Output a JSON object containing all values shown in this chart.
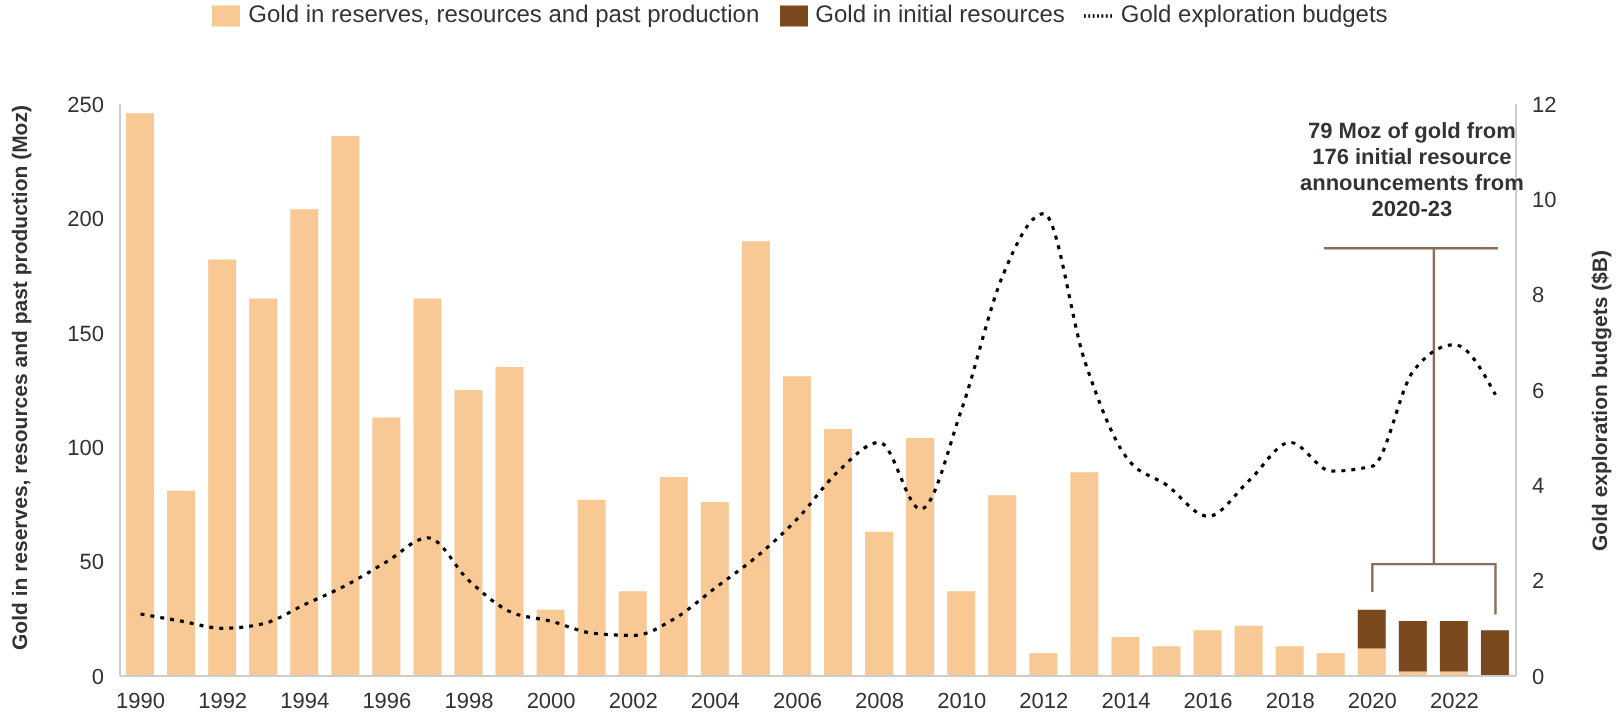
{
  "chart_data": {
    "type": "bar",
    "stacked": true,
    "categories": [
      "1990",
      null,
      "1992",
      null,
      "1994",
      null,
      "1996",
      null,
      "1998",
      null,
      "2000",
      null,
      "2002",
      null,
      "2004",
      null,
      "2006",
      null,
      "2008",
      null,
      "2010",
      null,
      "2012",
      null,
      "2014",
      null,
      "2016",
      null,
      "2018",
      null,
      "2020",
      null,
      "2022",
      null
    ],
    "series": [
      {
        "name": "Gold in reserves, resources and past production",
        "color": "#f8c994",
        "values": [
          246,
          81,
          182,
          165,
          204,
          236,
          113,
          165,
          125,
          135,
          29,
          77,
          37,
          87,
          76,
          190,
          131,
          108,
          63,
          104,
          37,
          79,
          10,
          89,
          17,
          13,
          20,
          22,
          13,
          10,
          12,
          2,
          2,
          0
        ]
      },
      {
        "name": "Gold in initial resources",
        "color": "#7a4a1e",
        "values": [
          null,
          null,
          null,
          null,
          null,
          null,
          null,
          null,
          null,
          null,
          null,
          null,
          null,
          null,
          null,
          null,
          null,
          null,
          null,
          null,
          null,
          null,
          null,
          null,
          null,
          null,
          null,
          null,
          null,
          null,
          17,
          22,
          22,
          20
        ]
      },
      {
        "name": "Gold exploration budgets",
        "type": "line",
        "axis": "y2",
        "color": "#000000",
        "line_style": "dotted",
        "values": [
          1.3,
          1.15,
          1.0,
          1.1,
          1.5,
          1.9,
          2.4,
          2.9,
          2.0,
          1.35,
          1.15,
          0.9,
          0.85,
          1.2,
          1.85,
          2.5,
          3.3,
          4.3,
          4.9,
          3.5,
          5.6,
          8.4,
          9.7,
          6.6,
          4.6,
          4.0,
          3.35,
          4.1,
          4.9,
          4.3,
          4.4,
          6.4,
          6.95,
          5.9
        ]
      }
    ],
    "ylabel": "Gold in reserves, resources and past production (Moz)",
    "y2label": "Gold exploration budgets ($B)",
    "ylim": [
      0,
      250
    ],
    "yticks": [
      0,
      50,
      100,
      150,
      200,
      250
    ],
    "y2lim": [
      0,
      12
    ],
    "y2ticks": [
      0,
      2,
      4,
      6,
      8,
      10,
      12
    ],
    "legend": "top",
    "marker": "none",
    "annotations": [
      "79 Moz of gold from 176 initial resource announcements from 2020-23"
    ]
  }
}
